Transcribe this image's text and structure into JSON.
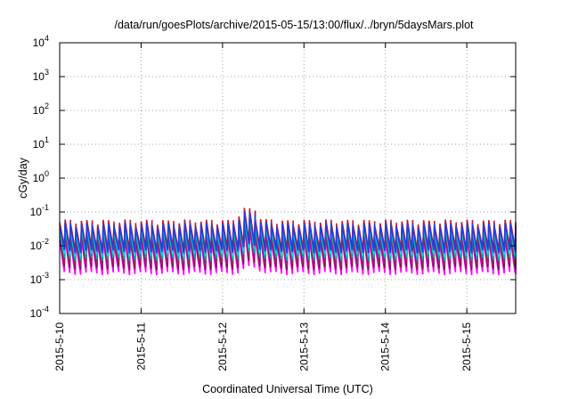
{
  "chart_data": {
    "type": "line",
    "title": "/data/run/goesPlots/archive/2015-05-15/13:00/flux/../bryn/5daysMars.plot",
    "xlabel": "Coordinated Universal Time (UTC)",
    "ylabel": "cGy/day",
    "yscale": "log",
    "ylim": [
      0.0001,
      10000
    ],
    "xlim": [
      0,
      5.6
    ],
    "x_unit": "days since 2015-5-10 00:00 UTC",
    "grid": true,
    "legend": "none",
    "x_ticks": [
      {
        "value": 0,
        "label": "2015-5-10"
      },
      {
        "value": 1,
        "label": "2015-5-11"
      },
      {
        "value": 2,
        "label": "2015-5-12"
      },
      {
        "value": 3,
        "label": "2015-5-13"
      },
      {
        "value": 4,
        "label": "2015-5-14"
      },
      {
        "value": 5,
        "label": "2015-5-15"
      }
    ],
    "y_ticks": [
      {
        "value": 0.0001,
        "base": "10",
        "exp": "-4"
      },
      {
        "value": 0.001,
        "base": "10",
        "exp": "-3"
      },
      {
        "value": 0.01,
        "base": "10",
        "exp": "-2"
      },
      {
        "value": 0.1,
        "base": "10",
        "exp": "-1"
      },
      {
        "value": 1,
        "base": "10",
        "exp": "0"
      },
      {
        "value": 10,
        "base": "10",
        "exp": "1"
      },
      {
        "value": 100,
        "base": "10",
        "exp": "2"
      },
      {
        "value": 1000,
        "base": "10",
        "exp": "3"
      },
      {
        "value": 10000,
        "base": "10",
        "exp": "4"
      }
    ],
    "sawtooth": {
      "period_days": 0.0667,
      "decay_fraction": 0.85,
      "spike_center_day": 2.3,
      "spike_width_days": 0.12,
      "spike_factor": 2.3
    },
    "series": [
      {
        "color": "#ff00ff",
        "peak": 0.018,
        "trough": 0.0017
      },
      {
        "color": "#7a1a4a",
        "peak": 0.024,
        "trough": 0.0024
      },
      {
        "color": "#a0206a",
        "peak": 0.03,
        "trough": 0.0032
      },
      {
        "color": "#00a8a8",
        "peak": 0.038,
        "trough": 0.0045
      },
      {
        "color": "#00e0e0",
        "peak": 0.045,
        "trough": 0.0058
      },
      {
        "color": "#e01010",
        "peak": 0.06,
        "trough": 0.009
      },
      {
        "color": "#1f3fe0",
        "peak": 0.05,
        "trough": 0.0075
      }
    ]
  }
}
